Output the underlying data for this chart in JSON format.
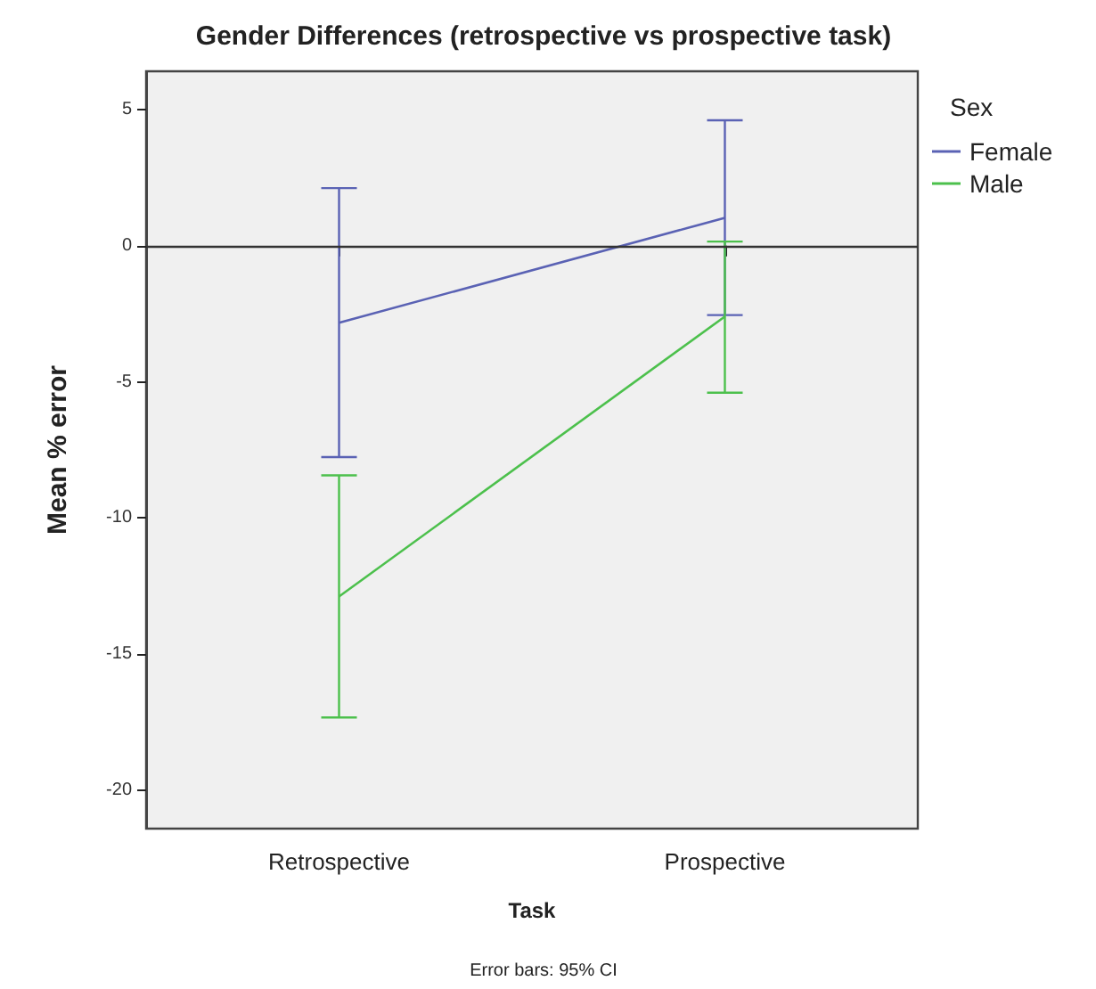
{
  "chart_data": {
    "type": "line",
    "title": "Gender Differences (retrospective vs prospective task)",
    "xlabel": "Task",
    "ylabel": "Mean % error",
    "legend_title": "Sex",
    "annotations": [
      "Error bars: 95% CI"
    ],
    "categories": [
      "Retrospective",
      "Prospective"
    ],
    "series": [
      {
        "name": "Female",
        "color": "#5a62b4",
        "values": [
          -2.83,
          1.02
        ],
        "errors": [
          [
            -7.76,
            2.11
          ],
          [
            -2.55,
            4.6
          ]
        ]
      },
      {
        "name": "Male",
        "color": "#4cc04c",
        "values": [
          -12.88,
          -2.6
        ],
        "errors": [
          [
            -17.32,
            -8.43
          ],
          [
            -5.4,
            0.15
          ]
        ]
      }
    ],
    "ylim": [
      -21.4,
      6.4
    ],
    "yticks": [
      -20,
      -15,
      -10,
      -5,
      0,
      5
    ],
    "ref_lines": [
      {
        "axis": "y",
        "value": 0,
        "color": "#333333"
      }
    ],
    "grid": false,
    "legend": "right",
    "marker": "none",
    "line_style": "solid"
  }
}
